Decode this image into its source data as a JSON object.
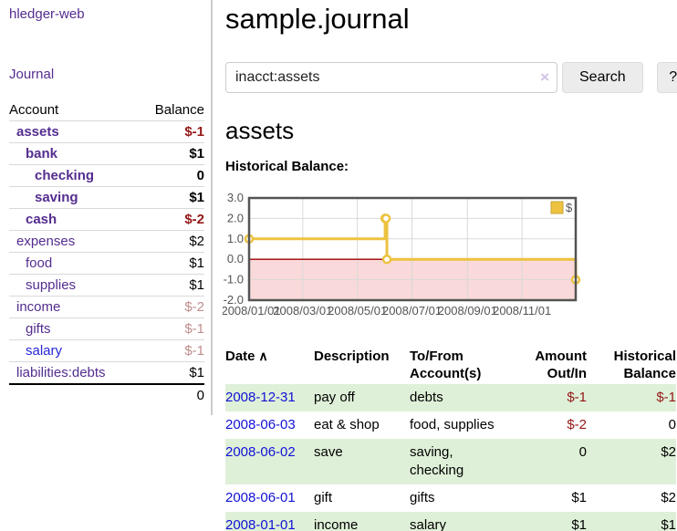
{
  "sidebar": {
    "app_title": "hledger-web",
    "nav": {
      "journal_label": "Journal"
    },
    "accounts_table": {
      "headers": {
        "account": "Account",
        "balance": "Balance"
      },
      "rows": [
        {
          "name": "assets",
          "level": 0,
          "bold": true,
          "name_style": "purple",
          "balance": "$-1",
          "balance_style": "neg-strong"
        },
        {
          "name": "bank",
          "level": 1,
          "bold": true,
          "name_style": "purple",
          "balance": "$1",
          "balance_style": "normal"
        },
        {
          "name": "checking",
          "level": 2,
          "bold": true,
          "name_style": "purple",
          "balance": "0",
          "balance_style": "normal"
        },
        {
          "name": "saving",
          "level": 2,
          "bold": true,
          "name_style": "purple",
          "balance": "$1",
          "balance_style": "normal"
        },
        {
          "name": "cash",
          "level": 1,
          "bold": true,
          "name_style": "purple",
          "balance": "$-2",
          "balance_style": "neg-strong"
        },
        {
          "name": "expenses",
          "level": 0,
          "bold": false,
          "name_style": "purple",
          "balance": "$2",
          "balance_style": "normal"
        },
        {
          "name": "food",
          "level": 1,
          "bold": false,
          "name_style": "purple",
          "balance": "$1",
          "balance_style": "normal"
        },
        {
          "name": "supplies",
          "level": 1,
          "bold": false,
          "name_style": "purple",
          "balance": "$1",
          "balance_style": "normal"
        },
        {
          "name": "income",
          "level": 0,
          "bold": false,
          "name_style": "purple",
          "balance": "$-2",
          "balance_style": "neg-soft"
        },
        {
          "name": "gifts",
          "level": 1,
          "bold": false,
          "name_style": "purple",
          "balance": "$-1",
          "balance_style": "neg-soft"
        },
        {
          "name": "salary",
          "level": 1,
          "bold": false,
          "name_style": "blue",
          "balance": "$-1",
          "balance_style": "neg-soft"
        },
        {
          "name": "liabilities:debts",
          "level": 0,
          "bold": false,
          "name_style": "purple",
          "balance": "$1",
          "balance_style": "normal"
        }
      ],
      "total": "0"
    }
  },
  "main": {
    "title": "sample.journal",
    "search": {
      "value": "inacct:assets",
      "clear_icon": "×",
      "button_label": "Search",
      "help_label": "?"
    },
    "account_heading": "assets",
    "chart_label": "Historical Balance:"
  },
  "chart_data": {
    "type": "line",
    "step": true,
    "title": "Historical Balance:",
    "legend": "$",
    "legend_position": "top-right",
    "grid": true,
    "x_start": "2008-01-01",
    "x_end": "2008-12-31",
    "ylim": [
      -2,
      3
    ],
    "y_ticks": [
      3.0,
      2.0,
      1.0,
      0.0,
      -1.0,
      -2.0
    ],
    "y_tick_labels": [
      "3.0",
      "2.0",
      "1.0",
      "0.0",
      "-1.0",
      "-2.0"
    ],
    "x_tick_labels": [
      "2008/01/01",
      "2008/03/01",
      "2008/05/01",
      "2008/07/01",
      "2008/09/01",
      "2008/11/01"
    ],
    "series": [
      {
        "name": "$",
        "color": "#edc240",
        "points": [
          [
            "2008-01-01",
            1
          ],
          [
            "2008-06-01",
            2
          ],
          [
            "2008-06-02",
            2
          ],
          [
            "2008-06-03",
            0
          ],
          [
            "2008-12-31",
            -1
          ]
        ]
      }
    ],
    "colors": {
      "border": "#545454",
      "gridline": "#d9d9d9",
      "negative_fill": "#f9d9d9",
      "zero_line": "#a00000",
      "tick_text": "#545454"
    }
  },
  "transactions": {
    "headers": {
      "date": "Date",
      "sort_icon": "∧",
      "description": "Description",
      "accounts": "To/From Account(s)",
      "amount": "Amount Out/In",
      "balance": "Historical Balance"
    },
    "rows": [
      {
        "date": "2008-12-31",
        "description": "pay off",
        "accounts": "debts",
        "amount": "$-1",
        "amount_negative": true,
        "balance": "$-1",
        "balance_negative": true
      },
      {
        "date": "2008-06-03",
        "description": "eat & shop",
        "accounts": "food, supplies",
        "amount": "$-2",
        "amount_negative": true,
        "balance": "0",
        "balance_negative": false
      },
      {
        "date": "2008-06-02",
        "description": "save",
        "accounts": "saving, checking",
        "amount": "0",
        "amount_negative": false,
        "balance": "$2",
        "balance_negative": false
      },
      {
        "date": "2008-06-01",
        "description": "gift",
        "accounts": "gifts",
        "amount": "$1",
        "amount_negative": false,
        "balance": "$2",
        "balance_negative": false
      },
      {
        "date": "2008-01-01",
        "description": "income",
        "accounts": "salary",
        "amount": "$1",
        "amount_negative": false,
        "balance": "$1",
        "balance_negative": false
      }
    ]
  },
  "colors": {
    "link_purple": "#542d8f",
    "link_blue": "#2727d4",
    "date_link_blue": "#1111d6",
    "negative_strong": "#941717",
    "negative_soft": "#c08d8d",
    "row_stripe_green": "#dff0d8",
    "series_gold": "#edc240"
  }
}
